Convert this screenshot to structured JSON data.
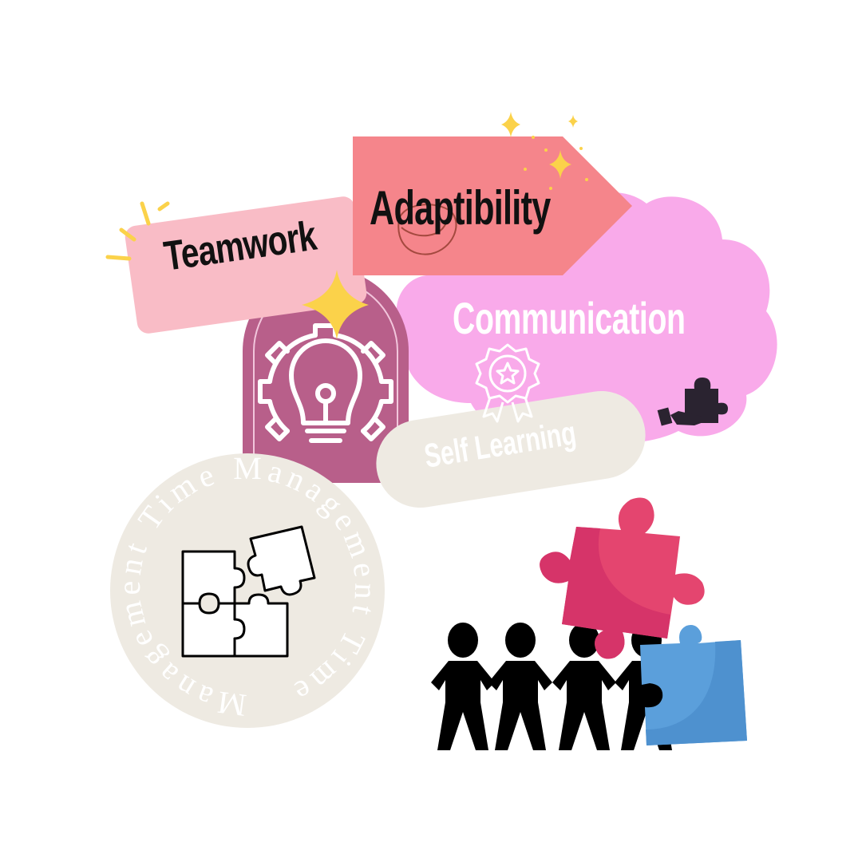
{
  "labels": {
    "teamwork": "Teamwork",
    "adaptability": "Adaptibility",
    "communication": "Communication",
    "self_learning": "Self Learning",
    "time_management_ring": "Management Time Management Time"
  },
  "colors": {
    "teamwork_card": "#f9bcc6",
    "adaptability_arrow": "#f5858b",
    "communication_cloud": "#f9aaea",
    "arch": "#b85f8a",
    "self_learning_pill": "#eeeae2",
    "time_circle": "#eeeae2",
    "star": "#fbd24a",
    "puzzle_pink": "#e4456f",
    "puzzle_blue": "#5b9fdb",
    "people": "#000000"
  },
  "icons": [
    "lightbulb-gear-icon",
    "award-badge-icon",
    "puzzle-hand-icon",
    "jigsaw-puzzle-icon",
    "paper-people-icon",
    "sparkle-icon"
  ]
}
